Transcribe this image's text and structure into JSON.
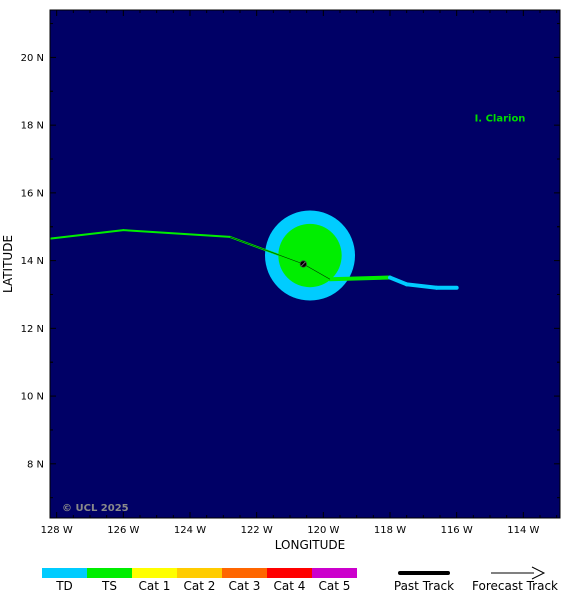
{
  "map": {
    "background_color": "#000066",
    "lon_range": [
      -128.2,
      -112.9
    ],
    "lat_range": [
      6.4,
      21.4
    ],
    "x_ticks": [
      {
        "value": -128,
        "label": "128 W"
      },
      {
        "value": -126,
        "label": "126 W"
      },
      {
        "value": -124,
        "label": "124 W"
      },
      {
        "value": -122,
        "label": "122 W"
      },
      {
        "value": -120,
        "label": "120 W"
      },
      {
        "value": -118,
        "label": "118 W"
      },
      {
        "value": -116,
        "label": "116 W"
      },
      {
        "value": -114,
        "label": "114 W"
      }
    ],
    "y_ticks": [
      {
        "value": 8,
        "label": "8 N"
      },
      {
        "value": 10,
        "label": "10 N"
      },
      {
        "value": 12,
        "label": "12 N"
      },
      {
        "value": 14,
        "label": "14 N"
      },
      {
        "value": 16,
        "label": "16 N"
      },
      {
        "value": 18,
        "label": "18 N"
      },
      {
        "value": 20,
        "label": "20 N"
      }
    ],
    "xlabel": "LONGITUDE",
    "ylabel": "LATITUDE",
    "copyright": "© UCL 2025",
    "copyright_color": "#8a8a8a",
    "island": {
      "label": "I. Clarion",
      "lon": -114.7,
      "lat": 18.2,
      "color": "#00dd00"
    },
    "wind_radii": {
      "lon": -120.4,
      "lat": 14.15,
      "outer_radius_deg": 1.35,
      "outer_color": "#00ccff",
      "inner_radius_deg": 0.95,
      "inner_color": "#00ee00"
    },
    "storm_center": {
      "lon": -120.6,
      "lat": 13.9
    },
    "forecast_track": [
      {
        "lon": -128.2,
        "lat": 14.65,
        "category": "TD"
      },
      {
        "lon": -126.0,
        "lat": 14.9,
        "category": "TS"
      },
      {
        "lon": -122.8,
        "lat": 14.7,
        "category": "TS"
      },
      {
        "lon": -120.6,
        "lat": 13.9,
        "category": "TS"
      },
      {
        "lon": -119.8,
        "lat": 13.45,
        "category": "TS"
      }
    ],
    "past_track": [
      {
        "lon": -119.8,
        "lat": 13.45,
        "category": "TS"
      },
      {
        "lon": -118.0,
        "lat": 13.5,
        "category": "TS"
      },
      {
        "lon": -117.5,
        "lat": 13.3,
        "category": "TD"
      },
      {
        "lon": -116.6,
        "lat": 13.2,
        "category": "TD"
      },
      {
        "lon": -116.0,
        "lat": 13.2,
        "category": "TD"
      }
    ]
  },
  "legend": {
    "categories": [
      {
        "label": "TD",
        "color": "#00ccff"
      },
      {
        "label": "TS",
        "color": "#00ee00"
      },
      {
        "label": "Cat 1",
        "color": "#ffff00"
      },
      {
        "label": "Cat 2",
        "color": "#ffcc00"
      },
      {
        "label": "Cat 3",
        "color": "#ff6600"
      },
      {
        "label": "Cat 4",
        "color": "#ff0000"
      },
      {
        "label": "Cat 5",
        "color": "#cc00cc"
      }
    ],
    "past_track_label": "Past Track",
    "forecast_track_label": "Forecast Track"
  }
}
